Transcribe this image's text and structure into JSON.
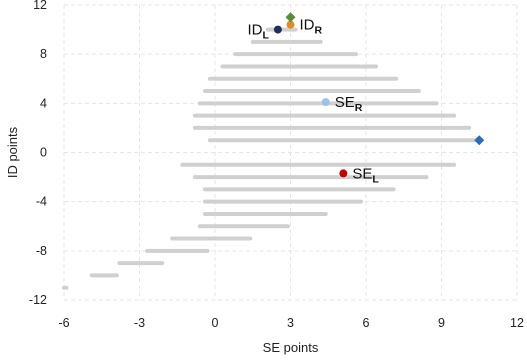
{
  "chart_data": {
    "type": "scatter",
    "title": "",
    "xlabel": "SE points",
    "ylabel": "ID points",
    "xlim": [
      -6,
      12
    ],
    "ylim": [
      -12,
      12
    ],
    "x_ticks": [
      "-6",
      "-3",
      "0",
      "3",
      "6",
      "9",
      "12"
    ],
    "y_ticks": [
      "12",
      "8",
      "4",
      "0",
      "-4",
      "-8",
      "-12"
    ],
    "grid": true,
    "series": [
      {
        "kind": "range-band",
        "color": "#d0d0d0",
        "rows": [
          {
            "y": 10.0,
            "x_start": 2.1,
            "x_end": 3.2
          },
          {
            "y": 9.0,
            "x_start": 1.5,
            "x_end": 4.2
          },
          {
            "y": 8.0,
            "x_start": 0.8,
            "x_end": 5.6
          },
          {
            "y": 7.0,
            "x_start": 0.3,
            "x_end": 6.4
          },
          {
            "y": 6.0,
            "x_start": -0.2,
            "x_end": 7.2
          },
          {
            "y": 5.0,
            "x_start": -0.4,
            "x_end": 8.1
          },
          {
            "y": 4.0,
            "x_start": -0.6,
            "x_end": 8.8
          },
          {
            "y": 3.0,
            "x_start": -0.8,
            "x_end": 9.5
          },
          {
            "y": 2.0,
            "x_start": -0.8,
            "x_end": 10.1
          },
          {
            "y": 1.0,
            "x_start": -0.2,
            "x_end": 10.5
          },
          {
            "y": -1.0,
            "x_start": -1.3,
            "x_end": 9.5
          },
          {
            "y": -2.0,
            "x_start": -0.8,
            "x_end": 8.4
          },
          {
            "y": -3.0,
            "x_start": -0.4,
            "x_end": 7.1
          },
          {
            "y": -4.0,
            "x_start": -0.4,
            "x_end": 5.8
          },
          {
            "y": -5.0,
            "x_start": -0.4,
            "x_end": 4.4
          },
          {
            "y": -6.0,
            "x_start": -0.6,
            "x_end": 2.9
          },
          {
            "y": -7.0,
            "x_start": -1.7,
            "x_end": 1.4
          },
          {
            "y": -8.0,
            "x_start": -2.7,
            "x_end": -0.3
          },
          {
            "y": -9.0,
            "x_start": -3.8,
            "x_end": -2.1
          },
          {
            "y": -10.0,
            "x_start": -4.9,
            "x_end": -3.9
          },
          {
            "y": -11.0,
            "x_start": -6.0,
            "x_end": -5.9
          }
        ]
      },
      {
        "kind": "markers",
        "points": [
          {
            "id": "id-l",
            "x": 2.5,
            "y": 10.0,
            "shape": "circle",
            "color": "#1f2f5a",
            "label": "ID",
            "sub": "L",
            "label_side": "left"
          },
          {
            "id": "id-r",
            "x": 3.0,
            "y": 10.4,
            "shape": "circle",
            "color": "#e08a2c",
            "label": "ID",
            "sub": "R",
            "label_side": "right"
          },
          {
            "id": "green",
            "x": 3.0,
            "y": 11.0,
            "shape": "diamond",
            "color": "#5b8c3a",
            "label": "",
            "sub": "",
            "label_side": "none"
          },
          {
            "id": "se-r",
            "x": 4.4,
            "y": 4.1,
            "shape": "circle",
            "color": "#9cc3e6",
            "label": "SE",
            "sub": "R",
            "label_side": "right"
          },
          {
            "id": "se-l",
            "x": 5.1,
            "y": -1.7,
            "shape": "circle",
            "color": "#c00000",
            "label": "SE",
            "sub": "L",
            "label_side": "right"
          },
          {
            "id": "blue",
            "x": 10.5,
            "y": 1.0,
            "shape": "diamond",
            "color": "#2e6db4",
            "label": "",
            "sub": "",
            "label_side": "none"
          }
        ]
      }
    ]
  }
}
